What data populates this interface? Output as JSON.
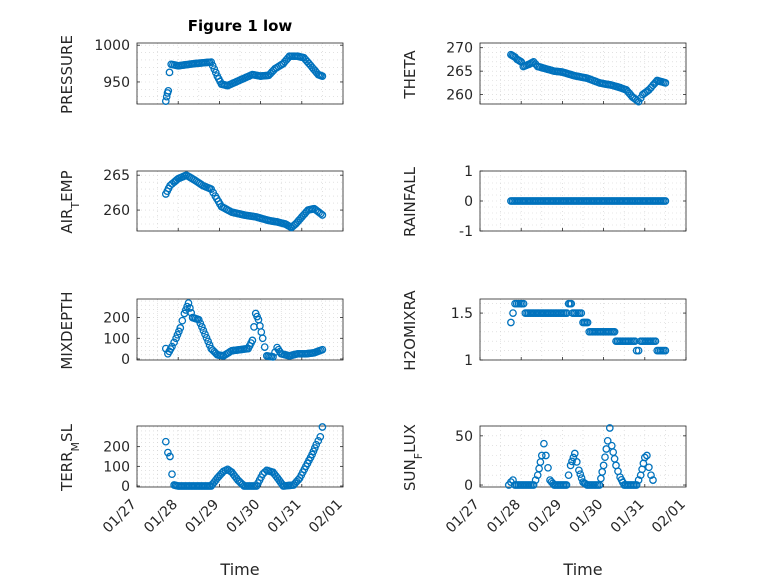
{
  "chart_data": [
    {
      "type": "scatter",
      "title": "Figure 1 low",
      "ylabel": "PRESSURE",
      "ylim": [
        920,
        1003
      ],
      "yticks": [
        950,
        1000
      ],
      "yticklabels": [
        "950",
        "1000"
      ],
      "xlim": [
        27,
        32
      ],
      "series": [
        {
          "name": "PRESSURE",
          "kp": [
            [
              27.7,
              924
            ],
            [
              27.72,
              930
            ],
            [
              27.74,
              935
            ],
            [
              27.76,
              938
            ],
            [
              27.79,
              963
            ],
            [
              27.83,
              974
            ],
            [
              28.0,
              972
            ],
            [
              28.4,
              975
            ],
            [
              28.8,
              977
            ],
            [
              28.95,
              958
            ],
            [
              29.05,
              947
            ],
            [
              29.2,
              945
            ],
            [
              29.4,
              950
            ],
            [
              29.8,
              960
            ],
            [
              30.0,
              958
            ],
            [
              30.2,
              959
            ],
            [
              30.35,
              968
            ],
            [
              30.55,
              975
            ],
            [
              30.7,
              985
            ],
            [
              30.9,
              985
            ],
            [
              31.05,
              983
            ],
            [
              31.25,
              970
            ],
            [
              31.4,
              960
            ],
            [
              31.5,
              958
            ]
          ]
        }
      ],
      "xlabel": "",
      "xticks": [],
      "xticklabels": []
    },
    {
      "type": "scatter",
      "title": "",
      "ylabel": "THETA",
      "ylim": [
        258,
        271
      ],
      "yticks": [
        260,
        265,
        270
      ],
      "yticklabels": [
        "260",
        "265",
        "270"
      ],
      "xlim": [
        27,
        32
      ],
      "series": [
        {
          "name": "THETA",
          "kp": [
            [
              27.75,
              268.5
            ],
            [
              27.85,
              268
            ],
            [
              27.9,
              267.5
            ],
            [
              28.0,
              267
            ],
            [
              28.05,
              266
            ],
            [
              28.2,
              266.5
            ],
            [
              28.3,
              267
            ],
            [
              28.4,
              266
            ],
            [
              28.6,
              265.5
            ],
            [
              28.8,
              265
            ],
            [
              29.0,
              264.8
            ],
            [
              29.3,
              264
            ],
            [
              29.6,
              263.5
            ],
            [
              29.9,
              262.5
            ],
            [
              30.2,
              262
            ],
            [
              30.4,
              261.5
            ],
            [
              30.55,
              261
            ],
            [
              30.7,
              259.5
            ],
            [
              30.85,
              258.5
            ],
            [
              30.95,
              260
            ],
            [
              31.1,
              261
            ],
            [
              31.2,
              262
            ],
            [
              31.3,
              263
            ],
            [
              31.5,
              262.5
            ]
          ]
        }
      ],
      "xlabel": "",
      "xticks": [],
      "xticklabels": []
    },
    {
      "type": "scatter",
      "title": "",
      "ylabel": "AIR_TEMP",
      "ylim": [
        257,
        265.6
      ],
      "yticks": [
        260,
        265
      ],
      "yticklabels": [
        "260",
        "265"
      ],
      "xlim": [
        27,
        32
      ],
      "series": [
        {
          "name": "AIR_TEMP",
          "kp": [
            [
              27.7,
              262.3
            ],
            [
              27.8,
              263.5
            ],
            [
              27.9,
              264
            ],
            [
              28.0,
              264.5
            ],
            [
              28.2,
              265
            ],
            [
              28.4,
              264.3
            ],
            [
              28.6,
              263.5
            ],
            [
              28.8,
              263
            ],
            [
              28.9,
              262
            ],
            [
              29.05,
              260.5
            ],
            [
              29.3,
              259.7
            ],
            [
              29.6,
              259.3
            ],
            [
              29.9,
              259
            ],
            [
              30.2,
              258.5
            ],
            [
              30.4,
              258.3
            ],
            [
              30.6,
              258
            ],
            [
              30.75,
              257.5
            ],
            [
              30.85,
              258
            ],
            [
              31.0,
              259
            ],
            [
              31.15,
              260
            ],
            [
              31.3,
              260.2
            ],
            [
              31.5,
              259.3
            ]
          ]
        }
      ],
      "xlabel": "",
      "xticks": [],
      "xticklabels": []
    },
    {
      "type": "scatter",
      "title": "",
      "ylabel": "RAINFALL",
      "ylim": [
        -1,
        1
      ],
      "yticks": [
        -1,
        0,
        1
      ],
      "yticklabels": [
        "-1",
        "0",
        "1"
      ],
      "xlim": [
        27,
        32
      ],
      "series": [
        {
          "name": "RAINFALL",
          "kp": [
            [
              27.75,
              0
            ],
            [
              31.5,
              0
            ]
          ]
        }
      ],
      "xlabel": "",
      "xticks": [],
      "xticklabels": []
    },
    {
      "type": "scatter",
      "title": "",
      "ylabel": "MIXDEPTH",
      "ylim": [
        -5,
        290
      ],
      "yticks": [
        0,
        100,
        200
      ],
      "yticklabels": [
        "0",
        "100",
        "200"
      ],
      "xlim": [
        27,
        32
      ],
      "series": [
        {
          "name": "MIXDEPTH",
          "kp": [
            [
              27.7,
              50
            ],
            [
              27.75,
              25
            ],
            [
              27.85,
              60
            ],
            [
              27.95,
              100
            ],
            [
              28.05,
              150
            ],
            [
              28.15,
              220
            ],
            [
              28.25,
              270
            ],
            [
              28.35,
              200
            ],
            [
              28.5,
              190
            ],
            [
              28.65,
              120
            ],
            [
              28.8,
              50
            ],
            [
              28.95,
              20
            ],
            [
              29.1,
              15
            ],
            [
              29.3,
              40
            ],
            [
              29.5,
              45
            ],
            [
              29.7,
              50
            ],
            [
              29.8,
              90
            ],
            [
              29.88,
              220
            ],
            [
              29.95,
              190
            ],
            [
              30.05,
              100
            ],
            [
              30.15,
              15
            ],
            [
              30.3,
              10
            ],
            [
              30.4,
              55
            ],
            [
              30.5,
              25
            ],
            [
              30.7,
              15
            ],
            [
              30.9,
              25
            ],
            [
              31.1,
              25
            ],
            [
              31.3,
              30
            ],
            [
              31.5,
              45
            ]
          ]
        }
      ],
      "xlabel": "",
      "xticks": [],
      "xticklabels": []
    },
    {
      "type": "scatter",
      "title": "",
      "ylabel": "H2OMIXRA",
      "ylim": [
        1,
        1.65
      ],
      "yticks": [
        1,
        1.5
      ],
      "yticklabels": [
        "1",
        "1.5"
      ],
      "xlim": [
        27,
        32
      ],
      "step": true,
      "series": [
        {
          "name": "H2OMIXRA",
          "kp": [
            [
              27.75,
              1.4
            ],
            [
              27.8,
              1.5
            ],
            [
              27.85,
              1.6
            ],
            [
              28.1,
              1.5
            ],
            [
              29.15,
              1.6
            ],
            [
              29.25,
              1.5
            ],
            [
              29.5,
              1.4
            ],
            [
              29.65,
              1.3
            ],
            [
              30.2,
              1.3
            ],
            [
              30.3,
              1.2
            ],
            [
              30.8,
              1.1
            ],
            [
              30.9,
              1.2
            ],
            [
              31.3,
              1.1
            ],
            [
              31.5,
              1.1
            ]
          ]
        }
      ],
      "xlabel": "",
      "xticks": [],
      "xticklabels": []
    },
    {
      "type": "scatter",
      "title": "",
      "ylabel": "TERR_MSL",
      "ylim": [
        -5,
        305
      ],
      "yticks": [
        0,
        100,
        200
      ],
      "yticklabels": [
        "0",
        "100",
        "200"
      ],
      "xlim": [
        27,
        32
      ],
      "series": [
        {
          "name": "TERR_MSL",
          "kp": [
            [
              27.7,
              225
            ],
            [
              27.75,
              170
            ],
            [
              27.8,
              150
            ],
            [
              27.85,
              60
            ],
            [
              27.9,
              5
            ],
            [
              28.0,
              0
            ],
            [
              28.8,
              0
            ],
            [
              28.95,
              40
            ],
            [
              29.1,
              75
            ],
            [
              29.2,
              85
            ],
            [
              29.3,
              70
            ],
            [
              29.45,
              30
            ],
            [
              29.6,
              0
            ],
            [
              29.9,
              0
            ],
            [
              30.05,
              60
            ],
            [
              30.15,
              80
            ],
            [
              30.3,
              70
            ],
            [
              30.45,
              30
            ],
            [
              30.55,
              0
            ],
            [
              30.8,
              5
            ],
            [
              30.95,
              40
            ],
            [
              31.1,
              100
            ],
            [
              31.25,
              160
            ],
            [
              31.35,
              210
            ],
            [
              31.45,
              250
            ],
            [
              31.5,
              300
            ]
          ]
        }
      ],
      "xlabel": "Time",
      "xticks": [
        27,
        28,
        29,
        30,
        31,
        32
      ],
      "xticklabels": [
        "01/27",
        "01/28",
        "01/29",
        "01/30",
        "01/31",
        "02/01"
      ]
    },
    {
      "type": "scatter",
      "title": "",
      "ylabel": "SUN_FLUX",
      "ylim": [
        -2,
        60
      ],
      "yticks": [
        0,
        50
      ],
      "yticklabels": [
        "0",
        "50"
      ],
      "xlim": [
        27,
        32
      ],
      "series": [
        {
          "name": "SUN_FLUX",
          "kp": [
            [
              27.7,
              0
            ],
            [
              27.75,
              3
            ],
            [
              27.8,
              5
            ],
            [
              27.85,
              0
            ],
            [
              28.3,
              0
            ],
            [
              28.4,
              10
            ],
            [
              28.5,
              30
            ],
            [
              28.55,
              42
            ],
            [
              28.6,
              30
            ],
            [
              28.7,
              5
            ],
            [
              28.8,
              0
            ],
            [
              29.1,
              0
            ],
            [
              29.2,
              20
            ],
            [
              29.3,
              32
            ],
            [
              29.4,
              15
            ],
            [
              29.5,
              3
            ],
            [
              29.6,
              0
            ],
            [
              29.9,
              0
            ],
            [
              30.0,
              20
            ],
            [
              30.1,
              45
            ],
            [
              30.15,
              58
            ],
            [
              30.2,
              40
            ],
            [
              30.3,
              20
            ],
            [
              30.4,
              8
            ],
            [
              30.5,
              0
            ],
            [
              30.8,
              0
            ],
            [
              30.9,
              10
            ],
            [
              31.0,
              28
            ],
            [
              31.05,
              30
            ],
            [
              31.1,
              18
            ],
            [
              31.15,
              10
            ],
            [
              31.2,
              5
            ]
          ]
        }
      ],
      "xlabel": "Time",
      "xticks": [
        27,
        28,
        29,
        30,
        31,
        32
      ],
      "xticklabels": [
        "01/27",
        "01/28",
        "01/29",
        "01/30",
        "01/31",
        "02/01"
      ]
    }
  ]
}
